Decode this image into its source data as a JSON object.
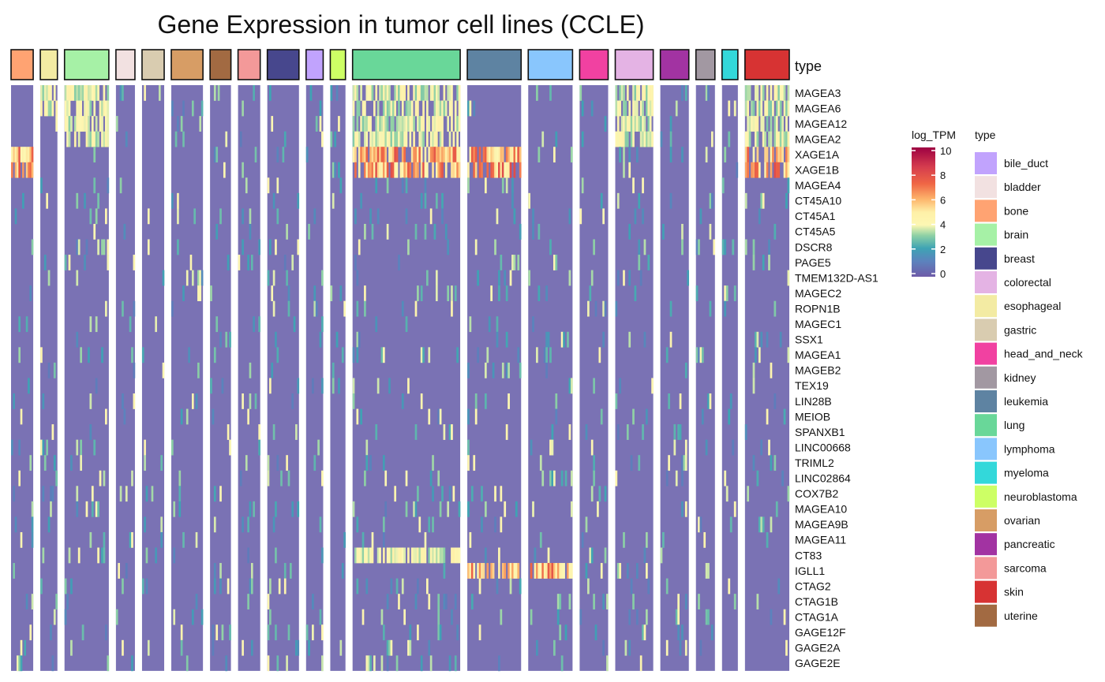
{
  "chart_data": {
    "type": "heatmap",
    "title": "Gene Expression in tumor cell lines (CCLE)",
    "annotation_label": "type",
    "genes": [
      "MAGEA3",
      "MAGEA6",
      "MAGEA12",
      "MAGEA2",
      "XAGE1A",
      "XAGE1B",
      "MAGEA4",
      "CT45A10",
      "CT45A1",
      "CT45A5",
      "DSCR8",
      "PAGE5",
      "TMEM132D-AS1",
      "MAGEC2",
      "ROPN1B",
      "MAGEC1",
      "SSX1",
      "MAGEA1",
      "MAGEB2",
      "TEX19",
      "LIN28B",
      "MEIOB",
      "SPANXB1",
      "LINC00668",
      "TRIML2",
      "LINC02864",
      "COX7B2",
      "MAGEA10",
      "MAGEA9B",
      "MAGEA11",
      "CT83",
      "IGLL1",
      "CTAG2",
      "CTAG1B",
      "CTAG1A",
      "GAGE12F",
      "GAGE2A",
      "GAGE2E"
    ],
    "column_groups": [
      {
        "type": "bone",
        "share": 0.035
      },
      {
        "type": "esophageal",
        "share": 0.027
      },
      {
        "type": "brain",
        "share": 0.07
      },
      {
        "type": "bladder",
        "share": 0.03
      },
      {
        "type": "gastric",
        "share": 0.035
      },
      {
        "type": "ovarian",
        "share": 0.05
      },
      {
        "type": "uterine",
        "share": 0.033
      },
      {
        "type": "sarcoma",
        "share": 0.035
      },
      {
        "type": "breast",
        "share": 0.05
      },
      {
        "type": "bile_duct",
        "share": 0.027
      },
      {
        "type": "neuroblastoma",
        "share": 0.024
      },
      {
        "type": "lung",
        "share": 0.17
      },
      {
        "type": "leukemia",
        "share": 0.085
      },
      {
        "type": "lymphoma",
        "share": 0.07
      },
      {
        "type": "head_and_neck",
        "share": 0.045
      },
      {
        "type": "colorectal",
        "share": 0.06
      },
      {
        "type": "pancreatic",
        "share": 0.045
      },
      {
        "type": "kidney",
        "share": 0.03
      },
      {
        "type": "myeloma",
        "share": 0.025
      },
      {
        "type": "skin",
        "share": 0.07
      }
    ],
    "color_legend": {
      "title": "log_TPM",
      "ticks": [
        0,
        2,
        4,
        6,
        8,
        10
      ],
      "range": [
        0,
        10
      ]
    },
    "type_legend": {
      "title": "type",
      "items": [
        {
          "label": "bile_duct",
          "color": "#b18cfc"
        },
        {
          "label": "bladder",
          "color": "#efd9d9"
        },
        {
          "label": "bone",
          "color": "#ff8c4f"
        },
        {
          "label": "brain",
          "color": "#90ee90"
        },
        {
          "label": "breast",
          "color": "#191970"
        },
        {
          "label": "colorectal",
          "color": "#dda0dd"
        },
        {
          "label": "esophageal",
          "color": "#f0e68c"
        },
        {
          "label": "gastric",
          "color": "#cfbf9c"
        },
        {
          "label": "head_and_neck",
          "color": "#ee1289"
        },
        {
          "label": "kidney",
          "color": "#8b7e8b"
        },
        {
          "label": "leukemia",
          "color": "#36648b"
        },
        {
          "label": "lung",
          "color": "#43cd80"
        },
        {
          "label": "lymphoma",
          "color": "#6cb8fc"
        },
        {
          "label": "myeloma",
          "color": "#00ced1"
        },
        {
          "label": "neuroblastoma",
          "color": "#c0ff3e"
        },
        {
          "label": "ovarian",
          "color": "#cd853f"
        },
        {
          "label": "pancreatic",
          "color": "#8b008b"
        },
        {
          "label": "sarcoma",
          "color": "#f08080"
        },
        {
          "label": "skin",
          "color": "#cd0000"
        },
        {
          "label": "uterine",
          "color": "#8b4513"
        }
      ]
    },
    "hot_cells": [
      {
        "gene": "MAGEA3",
        "types": [
          "lung",
          "skin",
          "brain",
          "colorectal",
          "esophageal"
        ]
      },
      {
        "gene": "MAGEA6",
        "types": [
          "lung",
          "skin",
          "brain",
          "colorectal",
          "esophageal"
        ]
      },
      {
        "gene": "MAGEA12",
        "types": [
          "lung",
          "skin",
          "brain",
          "colorectal"
        ]
      },
      {
        "gene": "MAGEA2",
        "types": [
          "lung",
          "skin",
          "brain",
          "colorectal"
        ]
      },
      {
        "gene": "XAGE1A",
        "types": [
          "bone",
          "lung",
          "leukemia",
          "skin"
        ]
      },
      {
        "gene": "XAGE1B",
        "types": [
          "bone",
          "lung",
          "leukemia",
          "skin"
        ]
      },
      {
        "gene": "IGLL1",
        "types": [
          "leukemia",
          "lymphoma"
        ]
      },
      {
        "gene": "CT83",
        "types": [
          "lung"
        ]
      }
    ]
  }
}
